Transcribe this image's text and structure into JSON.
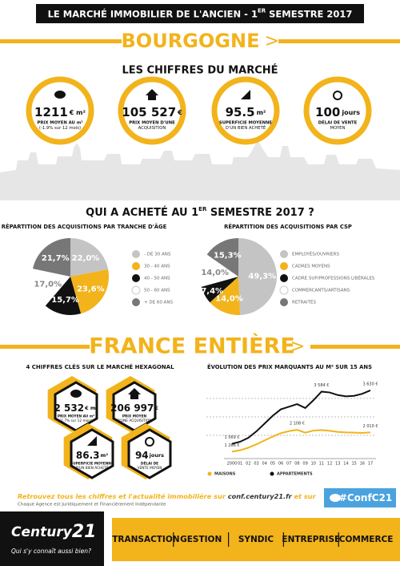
{
  "header": {
    "title_pre": "LE MARCHÉ IMMOBILIER DE L'ANCIEN - 1",
    "title_sup": "ER",
    "title_post": " SEMESTRE 2017"
  },
  "region": {
    "name": "BOURGOGNE",
    "arrow": ">",
    "section_title": "LES CHIFFRES DU MARCHÉ",
    "stats": [
      {
        "value": "1211",
        "unit": "€ m²",
        "label": [
          "PRIX MOYEN AU m²",
          "(-1.9% sur 12 mois)"
        ]
      },
      {
        "value": "105 527",
        "unit": "€",
        "label": [
          "PRIX MOYEN D'UNE",
          "ACQUISITION"
        ]
      },
      {
        "value": "95.5",
        "unit": "m²",
        "label": [
          "SUPERFICIE MOYENNE",
          "D'UN BIEN ACHETÉ"
        ]
      },
      {
        "value": "100",
        "unit": "jours",
        "label": [
          "DÉLAI DE VENTE",
          "MOYEN"
        ]
      }
    ]
  },
  "buyers": {
    "title_pre": "QUI A ACHETÉ AU 1",
    "title_sup": "ER",
    "title_post": " SEMESTRE 2017 ?"
  },
  "chart_data": [
    {
      "type": "pie",
      "title": "RÉPARTITION DES ACQUISITIONS PAR TRANCHE D'ÂGE",
      "categories": [
        "- DE 30 ANS",
        "30 - 40 ANS",
        "40 - 50 ANS",
        "50 - 60 ANS",
        "+ DE 60 ANS"
      ],
      "values": [
        22.0,
        23.6,
        15.7,
        17.0,
        21.7
      ],
      "value_labels": [
        "22,0%",
        "23,6%",
        "15,7%",
        "17,0%",
        "21,7%"
      ],
      "colors": [
        "#c4c4c4",
        "#f2b31b",
        "#111111",
        "#ffffff",
        "#777777"
      ]
    },
    {
      "type": "pie",
      "title": "RÉPARTITION DES ACQUISITIONS PAR CSP",
      "categories": [
        "EMPLOYÉS/OUVRIERS",
        "CADRES MOYENS",
        "CADRE SUP/PROFESSIONS LIBÉRALES",
        "COMMERCANTS/ARTISANS",
        "RETRAITÉS"
      ],
      "values": [
        49.3,
        14.0,
        7.4,
        14.0,
        15.3
      ],
      "value_labels": [
        "49,3%",
        "14,0%",
        "7,4%",
        "14,0%",
        "15,3%"
      ],
      "colors": [
        "#c4c4c4",
        "#f2b31b",
        "#111111",
        "#ffffff",
        "#777777"
      ]
    },
    {
      "type": "line",
      "title": "ÉVOLUTION DES PRIX MARQUANTS AU M² SUR 15 ANS",
      "x": [
        "2000",
        "01",
        "02",
        "03",
        "04",
        "05",
        "06",
        "07",
        "08",
        "09",
        "10",
        "11",
        "12",
        "13",
        "14",
        "15",
        "16",
        "17"
      ],
      "ylim": [
        1000,
        4000
      ],
      "series": [
        {
          "name": "MAISONS",
          "color": "#f2b31b",
          "values": [
            1266,
            1320,
            1420,
            1550,
            1700,
            1850,
            1980,
            2060,
            2108,
            2000,
            2080,
            2100,
            2070,
            2030,
            2010,
            2000,
            1990,
            2010
          ],
          "value_labels": [
            "1 266 €",
            null,
            null,
            null,
            null,
            null,
            null,
            null,
            "2 108 €",
            null,
            null,
            null,
            null,
            null,
            null,
            null,
            null,
            "2 010 €"
          ]
        },
        {
          "name": "APPARTEMENTS",
          "color": "#111111",
          "values": [
            1569,
            1650,
            1800,
            2050,
            2350,
            2650,
            2900,
            3000,
            3100,
            2950,
            3250,
            3584,
            3550,
            3450,
            3400,
            3420,
            3500,
            3630
          ],
          "value_labels": [
            "1 569 €",
            null,
            null,
            null,
            null,
            null,
            null,
            null,
            null,
            null,
            null,
            "3 584 €",
            null,
            null,
            null,
            null,
            null,
            "3 630 €"
          ]
        }
      ]
    }
  ],
  "france": {
    "name": "FRANCE ENTIÈRE",
    "arrow": ">",
    "section_title": "4 CHIFFRES CLÉS SUR LE MARCHÉ HEXAGONAL",
    "stats": [
      {
        "value": "2 532",
        "unit": "€ m²",
        "label": [
          "PRIX MOYEN AU m²",
          "(1.7% sur 12 mois)"
        ]
      },
      {
        "value": "206 997",
        "unit": "€",
        "label": [
          "PRIX MOYEN",
          "D'UNE ACQUISITION"
        ]
      },
      {
        "value": "86.3",
        "unit": "m²",
        "label": [
          "SUPERFICIE MOYENNE",
          "D'UN BIEN ACHETÉ"
        ]
      },
      {
        "value": "94",
        "unit": "jours",
        "label": [
          "DÉLAI DE",
          "VENTE MOYEN"
        ]
      }
    ]
  },
  "footer": {
    "cta_pre": "Retrouvez tous les chiffres et l'actualité immobilière sur ",
    "cta_link": "conf.century21.fr",
    "cta_post": " et sur",
    "disclaimer": "Chaque Agence est Juridiquement et Financièrement Indépendante",
    "hashtag": "#ConfC21",
    "logo": {
      "name": "Century",
      "number": "21",
      "tagline": "Qui s'y connaît aussi bien?"
    },
    "services": [
      "TRANSACTION",
      "GESTION",
      "SYNDIC",
      "ENTREPRISE",
      "COMMERCE"
    ]
  }
}
